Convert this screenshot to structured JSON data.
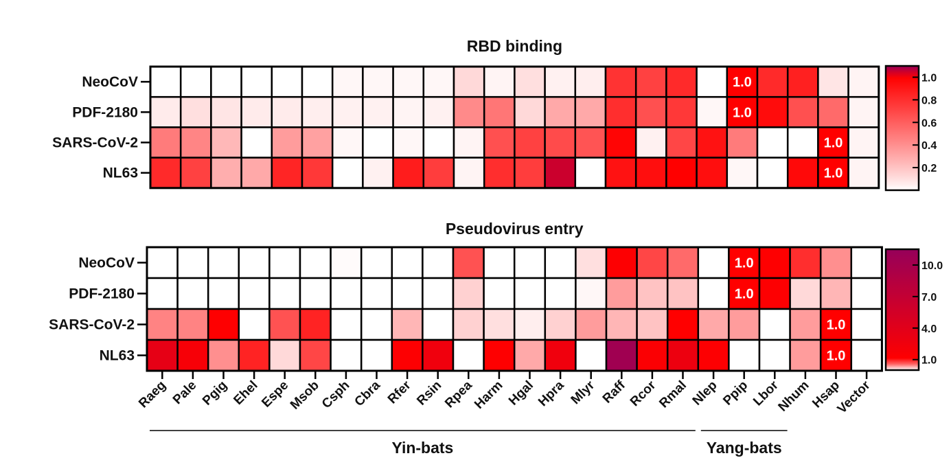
{
  "chart_data": [
    {
      "type": "heatmap",
      "title": "RBD binding",
      "rows": [
        "NeoCoV",
        "PDF-2180",
        "SARS-CoV-2",
        "NL63"
      ],
      "columns": [
        "Raeg",
        "Pale",
        "Pgig",
        "Ehel",
        "Espe",
        "Msob",
        "Csph",
        "Cbra",
        "Rfer",
        "Rsin",
        "Rpea",
        "Harm",
        "Hgal",
        "Hpra",
        "Mlyr",
        "Raff",
        "Rcor",
        "Rmal",
        "Nlep",
        "Ppip",
        "Lbor",
        "Nhum",
        "Hsap",
        "Vector"
      ],
      "values": [
        [
          0.0,
          0.0,
          0.0,
          0.0,
          0.0,
          0.0,
          0.02,
          0.02,
          0.02,
          0.02,
          0.12,
          0.03,
          0.1,
          0.04,
          0.05,
          0.78,
          0.72,
          0.82,
          0.0,
          1.0,
          0.82,
          0.86,
          0.08,
          0.03
        ],
        [
          0.06,
          0.1,
          0.08,
          0.06,
          0.06,
          0.05,
          0.04,
          0.04,
          0.03,
          0.04,
          0.42,
          0.5,
          0.12,
          0.3,
          0.3,
          0.8,
          0.66,
          0.76,
          0.02,
          1.0,
          0.95,
          0.66,
          0.55,
          0.03
        ],
        [
          0.48,
          0.44,
          0.24,
          0.0,
          0.35,
          0.33,
          0.02,
          0.0,
          0.02,
          0.0,
          0.03,
          0.66,
          0.72,
          0.68,
          0.64,
          0.98,
          0.04,
          0.7,
          0.92,
          0.48,
          0.0,
          0.0,
          1.0,
          0.03
        ],
        [
          0.82,
          0.72,
          0.28,
          0.3,
          0.84,
          0.76,
          0.0,
          0.04,
          0.88,
          0.74,
          0.03,
          0.8,
          0.74,
          1.05,
          0.0,
          0.92,
          0.94,
          1.0,
          0.94,
          0.02,
          0.0,
          0.96,
          1.0,
          0.03
        ]
      ],
      "cell_labels": [
        {
          "row": 0,
          "col": 19,
          "text": "1.0"
        },
        {
          "row": 1,
          "col": 19,
          "text": "1.0"
        },
        {
          "row": 2,
          "col": 22,
          "text": "1.0"
        },
        {
          "row": 3,
          "col": 22,
          "text": "1.0"
        }
      ],
      "colorbar": {
        "range": [
          0,
          1.1
        ],
        "ticks": [
          "1.0",
          "0.8",
          "0.6",
          "0.4",
          "0.2"
        ],
        "tick_values": [
          1.0,
          0.8,
          0.6,
          0.4,
          0.2
        ]
      }
    },
    {
      "type": "heatmap",
      "title": "Pseudovirus entry",
      "rows": [
        "NeoCoV",
        "PDF-2180",
        "SARS-CoV-2",
        "NL63"
      ],
      "columns": [
        "Raeg",
        "Pale",
        "Pgig",
        "Ehel",
        "Espe",
        "Msob",
        "Csph",
        "Cbra",
        "Rfer",
        "Rsin",
        "Rpea",
        "Harm",
        "Hgal",
        "Hpra",
        "Mlyr",
        "Raff",
        "Rcor",
        "Rmal",
        "Nlep",
        "Ppip",
        "Lbor",
        "Nhum",
        "Hsap",
        "Vector"
      ],
      "values": [
        [
          0.0,
          0.0,
          0.0,
          0.0,
          0.0,
          0.0,
          0.01,
          0.0,
          0.0,
          0.0,
          0.65,
          0.0,
          0.0,
          0.0,
          0.1,
          1.2,
          0.7,
          0.55,
          0.0,
          1.0,
          1.1,
          0.8,
          0.4,
          0.0
        ],
        [
          0.0,
          0.0,
          0.0,
          0.0,
          0.0,
          0.0,
          0.0,
          0.0,
          0.0,
          0.0,
          0.15,
          0.0,
          0.0,
          0.0,
          0.02,
          0.35,
          0.2,
          0.2,
          0.0,
          1.0,
          1.2,
          0.12,
          0.25,
          0.0
        ],
        [
          0.45,
          0.45,
          1.1,
          0.0,
          0.65,
          0.85,
          0.0,
          0.0,
          0.25,
          0.0,
          0.15,
          0.1,
          0.05,
          0.15,
          0.35,
          0.25,
          0.2,
          1.0,
          0.3,
          0.35,
          0.0,
          0.35,
          1.0,
          0.0
        ],
        [
          3.5,
          1.8,
          0.4,
          0.85,
          0.12,
          0.7,
          0.0,
          0.0,
          1.2,
          2.5,
          0.0,
          1.1,
          0.3,
          2.5,
          0.0,
          10.5,
          1.4,
          2.8,
          1.2,
          0.0,
          0.0,
          0.35,
          1.0,
          0.0
        ]
      ],
      "cell_labels": [
        {
          "row": 0,
          "col": 19,
          "text": "1.0"
        },
        {
          "row": 1,
          "col": 19,
          "text": "1.0"
        },
        {
          "row": 2,
          "col": 22,
          "text": "1.0"
        },
        {
          "row": 3,
          "col": 22,
          "text": "1.0"
        }
      ],
      "colorbar": {
        "range": [
          0,
          11.5
        ],
        "ticks": [
          "10.0",
          "7.0",
          "4.0",
          "1.0"
        ],
        "tick_values": [
          10.0,
          7.0,
          4.0,
          1.0
        ]
      }
    }
  ],
  "groups": [
    {
      "label": "Yin-bats",
      "from": 0,
      "to": 17
    },
    {
      "label": "Yang-bats",
      "from": 18,
      "to": 20
    }
  ],
  "colors": {
    "white": "#ffffff",
    "red": "#ff0000",
    "dark": "#96005a",
    "grid": "#000000"
  }
}
